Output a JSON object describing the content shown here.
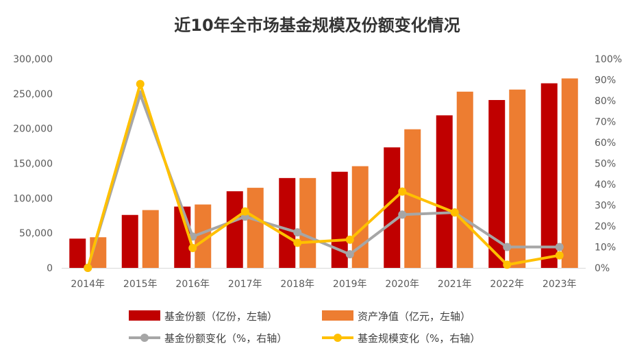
{
  "chart_data": {
    "type": "bar",
    "title": "近10年全市场基金规模及份额变化情况",
    "categories": [
      "2014年",
      "2015年",
      "2016年",
      "2017年",
      "2018年",
      "2019年",
      "2020年",
      "2021年",
      "2022年",
      "2023年"
    ],
    "left_axis": {
      "ylim": [
        0,
        300000
      ],
      "ticks": [
        "0",
        "50,000",
        "100,000",
        "150,000",
        "200,000",
        "250,000",
        "300,000"
      ]
    },
    "right_axis": {
      "ylim": [
        0,
        100
      ],
      "ticks": [
        "0%",
        "10%",
        "20%",
        "30%",
        "40%",
        "50%",
        "60%",
        "70%",
        "80%",
        "90%",
        "100%"
      ]
    },
    "bar_series": [
      {
        "name": "基金份额（亿份，左轴）",
        "color": "#C00000",
        "values": [
          42000,
          76000,
          88000,
          110000,
          129000,
          138000,
          173000,
          219000,
          241000,
          265000
        ]
      },
      {
        "name": "资产净值（亿元，左轴）",
        "color": "#ED7D31",
        "values": [
          44000,
          83000,
          91000,
          115000,
          129000,
          146000,
          199000,
          253000,
          256000,
          272000
        ]
      }
    ],
    "line_series": [
      {
        "name": "基金份额变化（%，右轴）",
        "color": "#A6A6A6",
        "values": [
          0,
          83,
          15,
          24.5,
          17,
          6.5,
          25.5,
          26.5,
          10,
          10
        ]
      },
      {
        "name": "基金规模变化（%，右轴）",
        "color": "#FFC000",
        "values": [
          0,
          88,
          9.5,
          27,
          12,
          13.5,
          36.5,
          26.5,
          1.5,
          6
        ]
      }
    ],
    "grid": false,
    "legend_position": "bottom"
  }
}
